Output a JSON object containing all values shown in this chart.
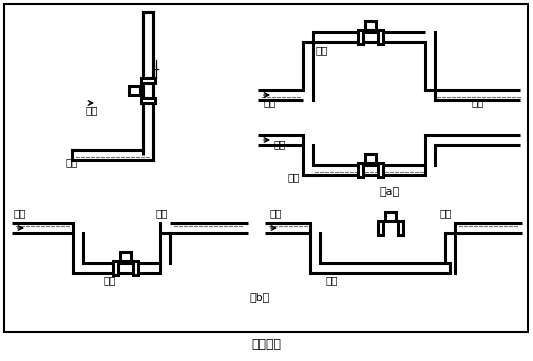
{
  "bg_color": "#ffffff",
  "lc": "#000000",
  "lw": 2.2,
  "fs": 7.5,
  "fig_title": "图（四）",
  "label_a": "（a）",
  "label_b": "（b）",
  "t_correct1": "正确",
  "t_liquid1": "液体",
  "t_correct2": "正确",
  "t_liquid2": "液体",
  "t_liquid3": "液体",
  "t_wrong1": "错误",
  "t_liquid4": "液体",
  "t_bubble1": "气泡",
  "t_bubble2": "气泡",
  "t_correct3": "正确",
  "t_bubble3": "气泡",
  "t_bubble4": "气泡",
  "t_wrong2": "错误"
}
